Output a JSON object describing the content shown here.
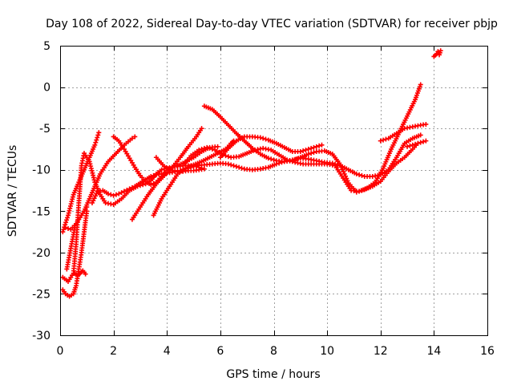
{
  "chart_data": {
    "type": "scatter",
    "title": "Day 108 of 2022, Sidereal Day-to-day VTEC variation (SDTVAR) for receiver pbjp",
    "xlabel": "GPS time / hours",
    "ylabel": "SDTVAR / TECUs",
    "xlim": [
      0,
      16
    ],
    "ylim": [
      -30,
      5
    ],
    "xticks": [
      0,
      2,
      4,
      6,
      8,
      10,
      12,
      14,
      16
    ],
    "yticks": [
      -30,
      -25,
      -20,
      -15,
      -10,
      -5,
      0,
      5
    ],
    "xtick_labels": [
      "0",
      "2",
      "4",
      "6",
      "8",
      "10",
      "12",
      "14",
      "16"
    ],
    "ytick_labels": [
      "-30",
      "-25",
      "-20",
      "-15",
      "-10",
      "-5",
      "0",
      "5"
    ],
    "grid": true,
    "marker": "+",
    "color": "#ff0000",
    "series": [
      {
        "name": "arc-1",
        "x": [
          0.1,
          0.3,
          0.5,
          0.7,
          0.9,
          1.1,
          1.3,
          1.45
        ],
        "y": [
          -17.5,
          -15.5,
          -13,
          -11.5,
          -10,
          -8.5,
          -7,
          -5.5
        ]
      },
      {
        "name": "arc-2",
        "x": [
          0.1,
          0.3,
          0.5,
          0.6,
          0.7,
          0.8,
          0.9,
          1.0,
          1.1,
          1.3,
          1.5,
          1.7,
          2.0,
          2.3,
          2.6,
          2.9,
          3.2,
          3.4,
          3.6,
          3.8,
          4.0,
          4.3,
          4.7,
          5.0,
          5.3
        ],
        "y": [
          -23,
          -23.5,
          -22.5,
          -19,
          -14,
          -9.5,
          -8,
          -8.5,
          -9,
          -11.5,
          -13,
          -14,
          -14.2,
          -13.5,
          -12.5,
          -12,
          -11.7,
          -11.3,
          -10.5,
          -10,
          -9.8,
          -9.6,
          -9.5,
          -9.5,
          -9.8
        ]
      },
      {
        "name": "arc-3",
        "x": [
          0.1,
          0.2,
          0.35,
          0.5,
          0.6,
          0.7,
          0.8,
          0.9,
          1.0
        ],
        "y": [
          -24.5,
          -25,
          -25.3,
          -25,
          -24,
          -22,
          -20,
          -17.5,
          -15
        ]
      },
      {
        "name": "arc-4",
        "x": [
          0.2,
          0.4,
          0.6,
          0.8,
          1.0
        ],
        "y": [
          -17,
          -17.2,
          -16.5,
          -15.5,
          -14.5
        ]
      },
      {
        "name": "arc-5",
        "x": [
          0.25,
          0.4,
          0.55
        ],
        "y": [
          -22,
          -19.5,
          -17
        ]
      },
      {
        "name": "arc-6",
        "x": [
          0.55,
          0.65,
          0.75,
          0.85,
          0.95
        ],
        "y": [
          -22.5,
          -22.8,
          -22.5,
          -22.2,
          -22.6
        ]
      },
      {
        "name": "arc-7",
        "x": [
          0.9,
          1.1,
          1.3,
          1.5,
          1.8,
          2.1,
          2.4,
          2.7,
          2.8
        ],
        "y": [
          -15,
          -13.5,
          -12,
          -10.5,
          -9,
          -8,
          -7,
          -6.2,
          -6
        ]
      },
      {
        "name": "arc-8",
        "x": [
          1.2,
          1.4,
          1.6,
          1.8,
          2.0,
          2.2,
          2.4,
          2.6,
          2.8,
          3.0,
          3.2,
          3.4,
          3.6,
          3.8,
          4.0,
          4.2,
          4.4,
          4.6,
          4.8,
          5.0,
          5.2,
          5.4
        ],
        "y": [
          -14,
          -12.6,
          -12.5,
          -12.9,
          -13.1,
          -12.9,
          -12.6,
          -12.3,
          -12,
          -11.6,
          -11.2,
          -10.8,
          -10.6,
          -10.5,
          -10.4,
          -10.3,
          -10.2,
          -10.2,
          -10.1,
          -10.1,
          -10,
          -9.9
        ]
      },
      {
        "name": "arc-9",
        "x": [
          2.0,
          2.2,
          2.4,
          2.6,
          2.8,
          3.0,
          3.2,
          3.4,
          3.6,
          3.8,
          4.0,
          4.3,
          4.6,
          5.0,
          5.3,
          5.6,
          5.9
        ],
        "y": [
          -6,
          -6.5,
          -7.5,
          -8.6,
          -9.7,
          -10.7,
          -11.4,
          -11.8,
          -11.5,
          -10.8,
          -10.1,
          -9.6,
          -9.2,
          -8.5,
          -7.8,
          -7.3,
          -7.2
        ]
      },
      {
        "name": "arc-10",
        "x": [
          2.7,
          3.0,
          3.3,
          3.6,
          3.9,
          4.2,
          4.5,
          4.8,
          5.1,
          5.3
        ],
        "y": [
          -16,
          -14.5,
          -13,
          -11.7,
          -10.7,
          -9.7,
          -8.5,
          -7.2,
          -6,
          -5
        ]
      },
      {
        "name": "arc-11",
        "x": [
          3.5,
          3.8,
          4.1,
          4.4,
          4.7,
          5.0,
          5.3,
          5.6,
          5.9,
          6.2,
          6.4,
          6.5
        ],
        "y": [
          -15.5,
          -13.5,
          -12,
          -10.5,
          -9.8,
          -9.4,
          -9,
          -8.5,
          -8,
          -7.5,
          -6.8,
          -6.5
        ]
      },
      {
        "name": "arc-12",
        "x": [
          3.6,
          3.9,
          4.2,
          4.5,
          4.8,
          5.1,
          5.4,
          5.7,
          6.0,
          6.3,
          6.6,
          6.9,
          7.2,
          7.5,
          7.8,
          8.1,
          8.4,
          8.7,
          9.0,
          9.3,
          9.6,
          9.9,
          10.2,
          10.5,
          10.8,
          11.1,
          11.4,
          11.7,
          12.0,
          12.3,
          12.6,
          12.9,
          13.2,
          13.5
        ],
        "y": [
          -8.5,
          -9.6,
          -10.1,
          -10.1,
          -9.8,
          -9.5,
          -9.4,
          -9.3,
          -9.2,
          -9.3,
          -9.6,
          -9.9,
          -10,
          -9.9,
          -9.7,
          -9.3,
          -9,
          -8.8,
          -8.6,
          -8.7,
          -8.9,
          -9.1,
          -9.2,
          -9.5,
          -10,
          -10.5,
          -10.8,
          -10.8,
          -10.6,
          -10,
          -8.5,
          -6.8,
          -6.2,
          -5.8
        ]
      },
      {
        "name": "arc-13",
        "x": [
          4.6,
          4.9,
          5.2,
          5.5,
          5.8,
          6.1,
          6.4,
          6.7,
          7.0,
          7.3,
          7.6,
          7.9,
          8.2,
          8.5,
          8.8,
          9.1,
          9.4,
          9.7,
          10.0,
          10.3,
          10.6,
          10.9,
          11.2,
          11.5,
          11.8,
          12.1,
          12.4,
          12.7,
          13.0,
          13.3,
          13.5
        ],
        "y": [
          -9.5,
          -8.3,
          -7.6,
          -7.3,
          -7.6,
          -8.2,
          -8.5,
          -8.4,
          -8,
          -7.6,
          -7.4,
          -7.6,
          -8.2,
          -8.8,
          -9.1,
          -9.3,
          -9.3,
          -9.3,
          -9.3,
          -9.5,
          -11,
          -12.5,
          -12.6,
          -12.2,
          -11.5,
          -9.8,
          -7.5,
          -5.5,
          -3.5,
          -1.5,
          0.3
        ]
      },
      {
        "name": "arc-14",
        "x": [
          5.4,
          5.7,
          6.0,
          6.3,
          6.6,
          6.9,
          7.2,
          7.5,
          7.8,
          8.1,
          8.4,
          8.7,
          9.0,
          9.3,
          9.6,
          9.9,
          10.2,
          10.5,
          10.8,
          11.1,
          11.4,
          11.7,
          12.0,
          12.3,
          12.6,
          12.9,
          13.2,
          13.4
        ],
        "y": [
          -2.3,
          -2.7,
          -3.6,
          -4.6,
          -5.6,
          -6.5,
          -7.4,
          -8.1,
          -8.6,
          -8.9,
          -9,
          -8.9,
          -8.5,
          -8.1,
          -7.8,
          -7.7,
          -8.1,
          -9.4,
          -11.6,
          -12.7,
          -12.4,
          -12,
          -11.4,
          -10.2,
          -9.2,
          -8.5,
          -7.5,
          -6.8
        ]
      },
      {
        "name": "arc-15",
        "x": [
          6.0,
          6.3,
          6.6,
          6.9,
          7.2,
          7.5,
          7.8,
          8.1,
          8.4,
          8.7,
          9.0,
          9.3,
          9.6,
          9.8
        ],
        "y": [
          -8.5,
          -7.4,
          -6.5,
          -6,
          -6,
          -6.1,
          -6.4,
          -6.8,
          -7.3,
          -7.8,
          -7.8,
          -7.5,
          -7.2,
          -7
        ]
      },
      {
        "name": "arc-16",
        "x": [
          12.0,
          12.3,
          12.6,
          12.9,
          13.2,
          13.5,
          13.7
        ],
        "y": [
          -6.5,
          -6.2,
          -5.6,
          -5,
          -4.8,
          -4.6,
          -4.5
        ]
      },
      {
        "name": "arc-17",
        "x": [
          13.0,
          13.2,
          13.4,
          13.6,
          13.7
        ],
        "y": [
          -7.2,
          -7,
          -6.8,
          -6.6,
          -6.5
        ]
      },
      {
        "name": "arc-18",
        "x": [
          14.0,
          14.1,
          14.15,
          14.2,
          14.25
        ],
        "y": [
          3.7,
          4,
          4.3,
          3.9,
          4.4
        ]
      }
    ]
  }
}
